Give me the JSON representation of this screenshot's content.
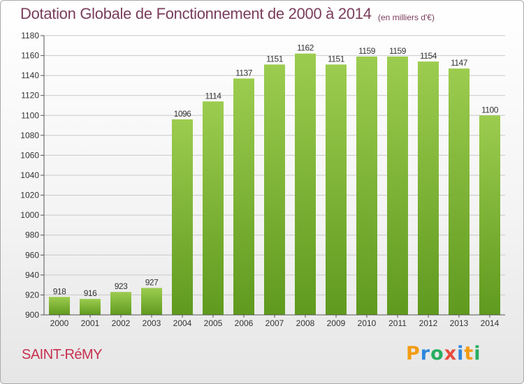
{
  "title": "Dotation Globale de Fonctionnement de 2000 à 2014",
  "unit_label": "(en milliers d'€)",
  "commune": "SAINT-RéMY",
  "brand": {
    "letters": [
      {
        "char": "P",
        "color": "#f39c12"
      },
      {
        "char": "r",
        "color": "#2e86de"
      },
      {
        "char": "o",
        "color": "#27ae60"
      },
      {
        "char": "x",
        "color": "#e74c3c"
      },
      {
        "char": "i",
        "color": "#2e86de"
      },
      {
        "char": "t",
        "color": "#f39c12"
      },
      {
        "char": "i",
        "color": "#27ae60"
      }
    ]
  },
  "colors": {
    "bar_top": "#9ccc4f",
    "bar_bottom": "#5f9a1e",
    "title": "#7a3d5c",
    "commune": "#c7304e"
  },
  "chart_data": {
    "type": "bar",
    "categories": [
      "2000",
      "2001",
      "2002",
      "2003",
      "2004",
      "2005",
      "2006",
      "2007",
      "2008",
      "2009",
      "2010",
      "2011",
      "2012",
      "2013",
      "2014"
    ],
    "values": [
      918,
      916,
      923,
      927,
      1096,
      1114,
      1137,
      1151,
      1162,
      1151,
      1159,
      1159,
      1154,
      1147,
      1100
    ],
    "title": "Dotation Globale de Fonctionnement de 2000 à 2014",
    "ylim": [
      900,
      1180
    ],
    "yticks": [
      900,
      920,
      940,
      960,
      980,
      1000,
      1020,
      1040,
      1060,
      1080,
      1100,
      1120,
      1140,
      1160,
      1180
    ],
    "grid": true,
    "data_labels": true
  }
}
